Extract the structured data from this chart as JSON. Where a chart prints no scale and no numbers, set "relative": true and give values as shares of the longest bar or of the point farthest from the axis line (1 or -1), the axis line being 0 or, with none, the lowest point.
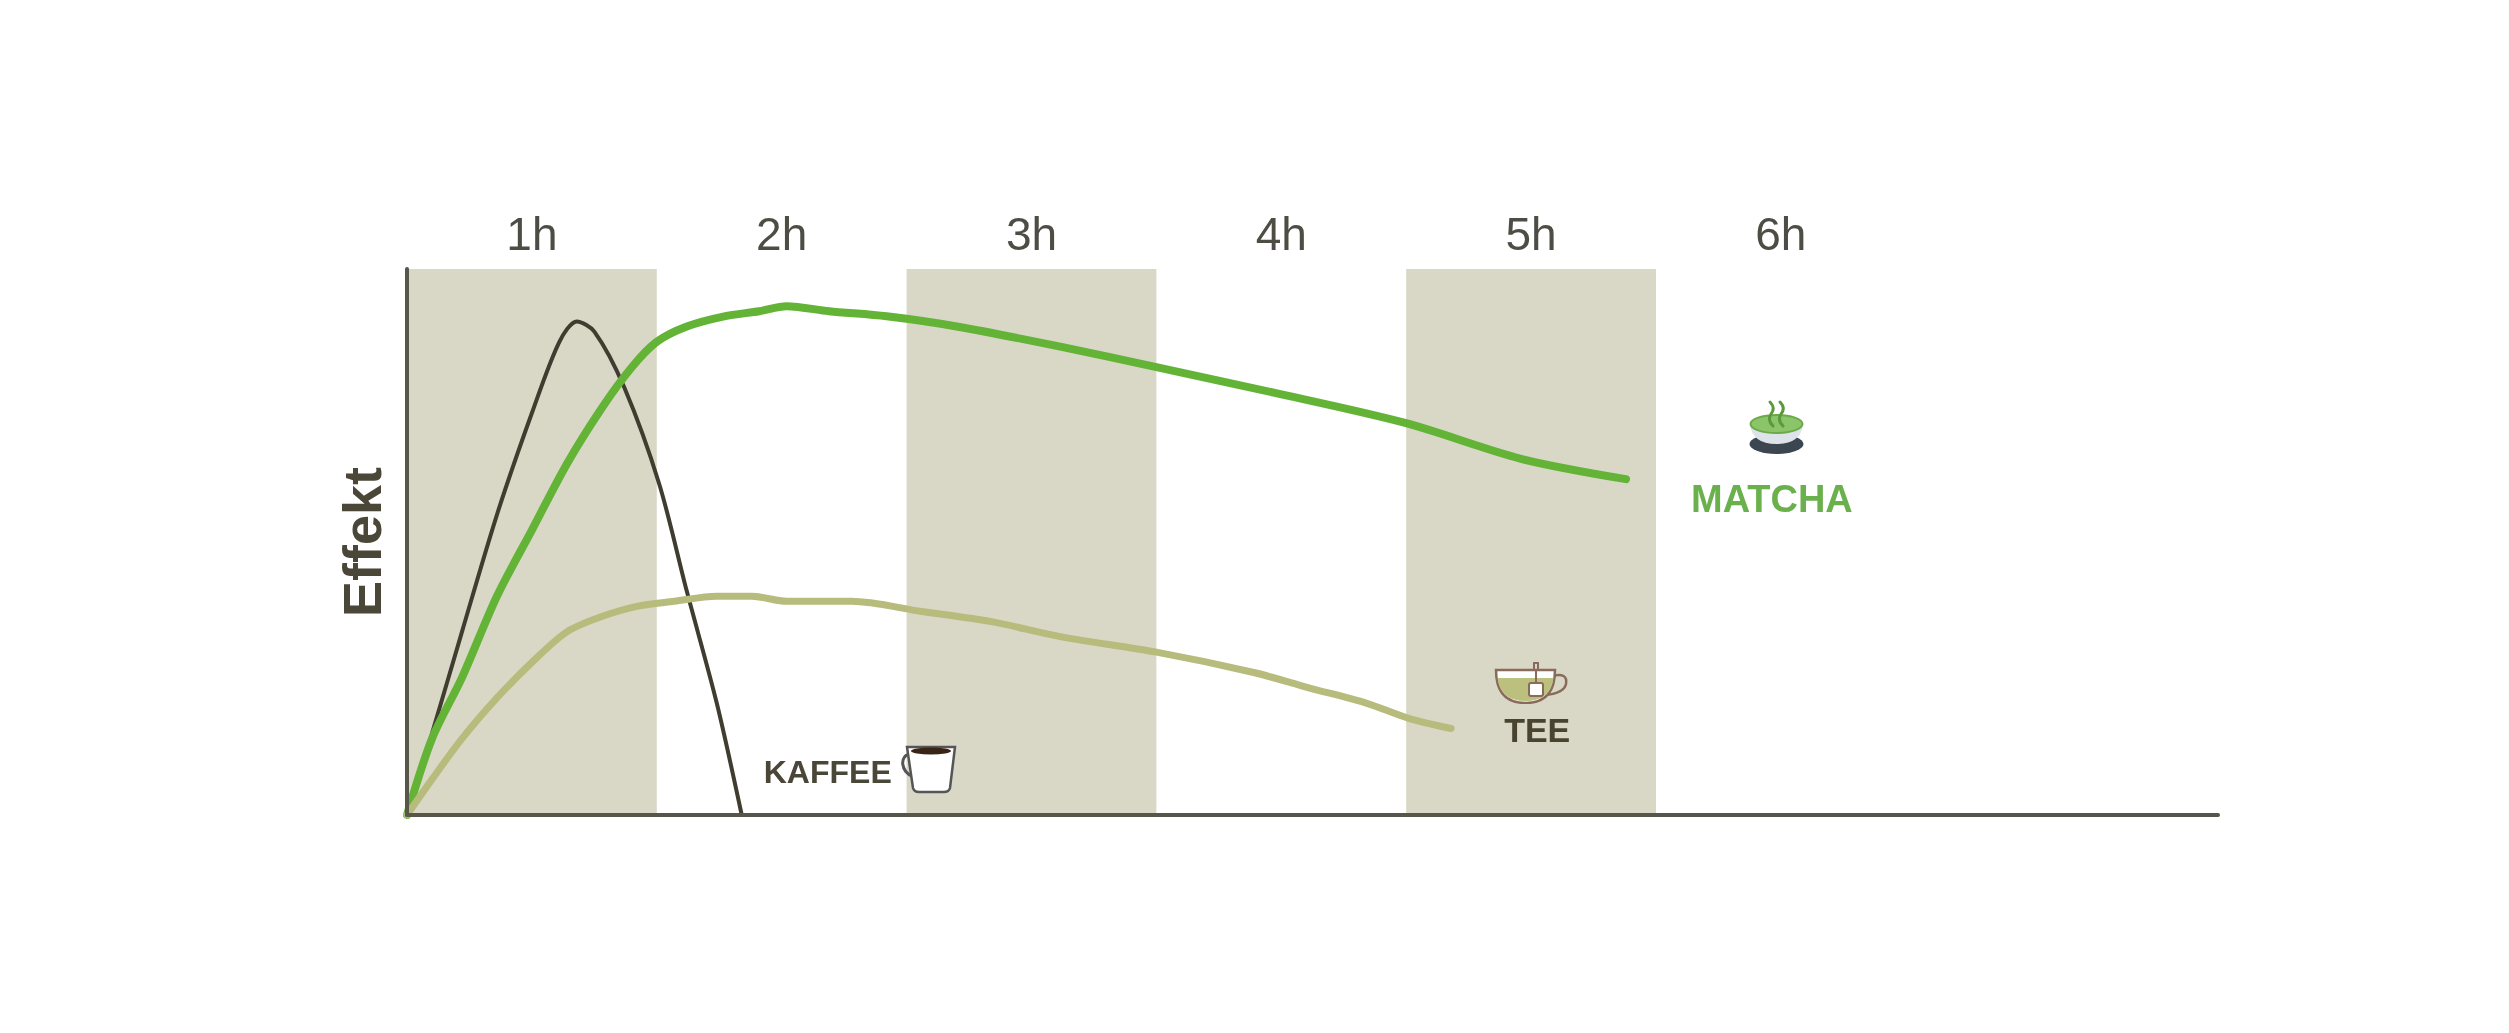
{
  "chart_data": {
    "type": "line",
    "ylabel": "Effekt",
    "relative": true,
    "marker": "none",
    "xlim": [
      0,
      7.25
    ],
    "xticks": [
      {
        "value": 0.5,
        "label": "1h"
      },
      {
        "value": 1.5,
        "label": "2h"
      },
      {
        "value": 2.5,
        "label": "3h"
      },
      {
        "value": 3.5,
        "label": "4h"
      },
      {
        "value": 4.5,
        "label": "5h"
      },
      {
        "value": 5.5,
        "label": "6h"
      }
    ],
    "bands": [
      {
        "axis": "x",
        "from": 0,
        "to": 1,
        "color": "#d9d8c6"
      },
      {
        "axis": "x",
        "from": 2,
        "to": 3,
        "color": "#d9d8c6"
      },
      {
        "axis": "x",
        "from": 4,
        "to": 5,
        "color": "#d9d8c6"
      }
    ],
    "series": [
      {
        "name": "KAFFEE",
        "color": "#3f3c30",
        "x": [
          0,
          0.1,
          0.22,
          0.36,
          0.5,
          0.61,
          0.68,
          0.75,
          0.87,
          1.01,
          1.12,
          1.24,
          1.34
        ],
        "values": [
          0,
          0.16,
          0.36,
          0.59,
          0.79,
          0.93,
          0.97,
          0.95,
          0.84,
          0.65,
          0.44,
          0.22,
          0
        ]
      },
      {
        "name": "MATCHA",
        "color": "#63b337",
        "x": [
          0,
          0.1,
          0.22,
          0.36,
          0.5,
          0.64,
          0.78,
          0.9,
          1.0,
          1.12,
          1.27,
          1.41,
          1.52,
          1.69,
          1.92,
          2.2,
          2.62,
          3.0,
          3.47,
          4.0,
          4.46,
          4.88
        ],
        "values": [
          0,
          0.15,
          0.27,
          0.43,
          0.56,
          0.69,
          0.8,
          0.88,
          0.93,
          0.96,
          0.98,
          0.99,
          1,
          0.99,
          0.98,
          0.96,
          0.92,
          0.88,
          0.83,
          0.77,
          0.7,
          0.66
        ]
      },
      {
        "name": "TEE",
        "color": "#b7bc7c",
        "x": [
          0,
          0.1,
          0.22,
          0.36,
          0.5,
          0.64,
          0.78,
          0.92,
          1.07,
          1.24,
          1.38,
          1.52,
          1.78,
          2.06,
          2.34,
          2.62,
          3.0,
          3.39,
          3.61,
          3.84,
          4.01,
          4.18
        ],
        "values": [
          0,
          0.07,
          0.15,
          0.23,
          0.3,
          0.36,
          0.39,
          0.41,
          0.42,
          0.43,
          0.43,
          0.42,
          0.42,
          0.4,
          0.38,
          0.35,
          0.32,
          0.28,
          0.25,
          0.22,
          0.19,
          0.17
        ]
      }
    ]
  }
}
